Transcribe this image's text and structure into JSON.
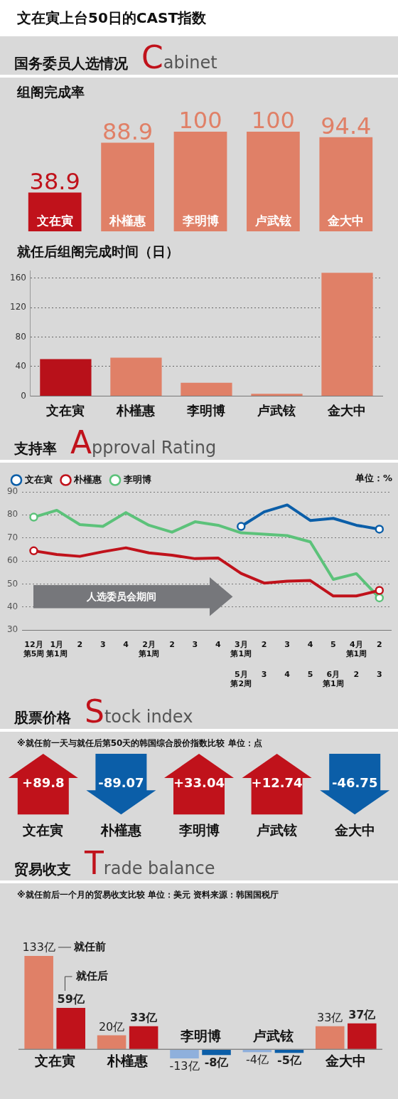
{
  "chart_data": [
    {
      "type": "other",
      "title": "文在寅上台50日的CAST指数"
    },
    {
      "type": "bar",
      "title": "国务委员人选情况 Cabinet",
      "subtitle": "组阁完成率",
      "categories": [
        "文在寅",
        "朴槿惠",
        "李明博",
        "卢武铉",
        "金大中"
      ],
      "values": [
        38.9,
        88.9,
        100,
        100,
        94.4
      ],
      "colors": [
        "#c0121b",
        "#e08067",
        "#e08067",
        "#e08067",
        "#e08067"
      ],
      "data_labels": true
    },
    {
      "type": "bar",
      "title": "就任后组阁完成时间（日）",
      "categories": [
        "文在寅",
        "朴槿惠",
        "李明博",
        "卢武铉",
        "金大中"
      ],
      "values": [
        50,
        52,
        18,
        3,
        167
      ],
      "colors": [
        "#b8111a",
        "#e08067",
        "#e08067",
        "#e08067",
        "#e08067"
      ],
      "ylim": [
        0,
        170
      ],
      "yticks": [
        0,
        40,
        80,
        120,
        160
      ],
      "grid": "y"
    },
    {
      "type": "line",
      "title": "支持率 Approval Rating",
      "categories": [
        "12月第5周",
        "1月第1周",
        "2",
        "3",
        "4",
        "2月第1周",
        "2",
        "3",
        "4",
        "3月第1周",
        "2",
        "3",
        "4",
        "5",
        "4月第1周",
        "2"
      ],
      "series": [
        {
          "name": "文在寅",
          "color": "#0b5ea8",
          "values": [
            null,
            null,
            null,
            null,
            null,
            null,
            null,
            null,
            null,
            75,
            81.3,
            84.3,
            77.6,
            78.5,
            75.5,
            73.8
          ]
        },
        {
          "name": "朴槿惠",
          "color": "#c0121b",
          "values": [
            64.4,
            62.8,
            62,
            64,
            65.7,
            63.5,
            62.5,
            61,
            61.3,
            54.6,
            50.4,
            51.2,
            51.5,
            44.8,
            44.8,
            47.2
          ]
        },
        {
          "name": "李明博",
          "color": "#5cc27a",
          "values": [
            79,
            82,
            75.8,
            75,
            81,
            75.5,
            72.5,
            77,
            75.5,
            72.2,
            71.6,
            71,
            68.3,
            52,
            54.5,
            44
          ]
        }
      ],
      "ylim": [
        30,
        90
      ],
      "yticks": [
        30,
        40,
        50,
        60,
        70,
        80,
        90
      ],
      "grid": "y",
      "legend": "top left",
      "line_style": "solid",
      "annotations": [
        "单位：%",
        "人选委员会期间",
        "5月第2周",
        "3",
        "4",
        "5",
        "6月第1周",
        "2",
        "3"
      ]
    },
    {
      "type": "other",
      "title": "股票价格 Stock index",
      "subtitle": "※就任前一天与就任后第50天的韩国综合股价指数比较 单位：点",
      "categories": [
        "文在寅",
        "朴槿惠",
        "李明博",
        "卢武铉",
        "金大中"
      ],
      "values": [
        89.8,
        -89.07,
        33.04,
        12.74,
        -46.75
      ],
      "value_labels": [
        "+89.8",
        "-89.07",
        "+33.04",
        "+12.74",
        "-46.75"
      ],
      "colors": [
        "#c0121b",
        "#0b5ea8",
        "#c0121b",
        "#c0121b",
        "#0b5ea8"
      ]
    },
    {
      "type": "bar",
      "title": "贸易收支 Trade balance",
      "subtitle": "※就任前后一个月的贸易收支比较 单位：美元 资料来源：韩国国税厅",
      "categories": [
        "文在寅",
        "朴槿惠",
        "李明博",
        "卢武铉",
        "金大中"
      ],
      "series": [
        {
          "name": "就任前",
          "colors": [
            "#e08067",
            "#e08067",
            "#8fb0dc",
            "#8fb0dc",
            "#e08067"
          ],
          "values": [
            133,
            20,
            -13,
            -4,
            33
          ],
          "value_labels": [
            "133亿",
            "20亿",
            "-13亿",
            "-4亿",
            "33亿"
          ]
        },
        {
          "name": "就任后",
          "colors": [
            "#c0121b",
            "#c0121b",
            "#0b5ea8",
            "#0b5ea8",
            "#c0121b"
          ],
          "values": [
            59,
            33,
            -8,
            -5,
            37
          ],
          "value_labels": [
            "59亿",
            "33亿",
            "-8亿",
            "-5亿",
            "37亿"
          ]
        }
      ]
    }
  ]
}
